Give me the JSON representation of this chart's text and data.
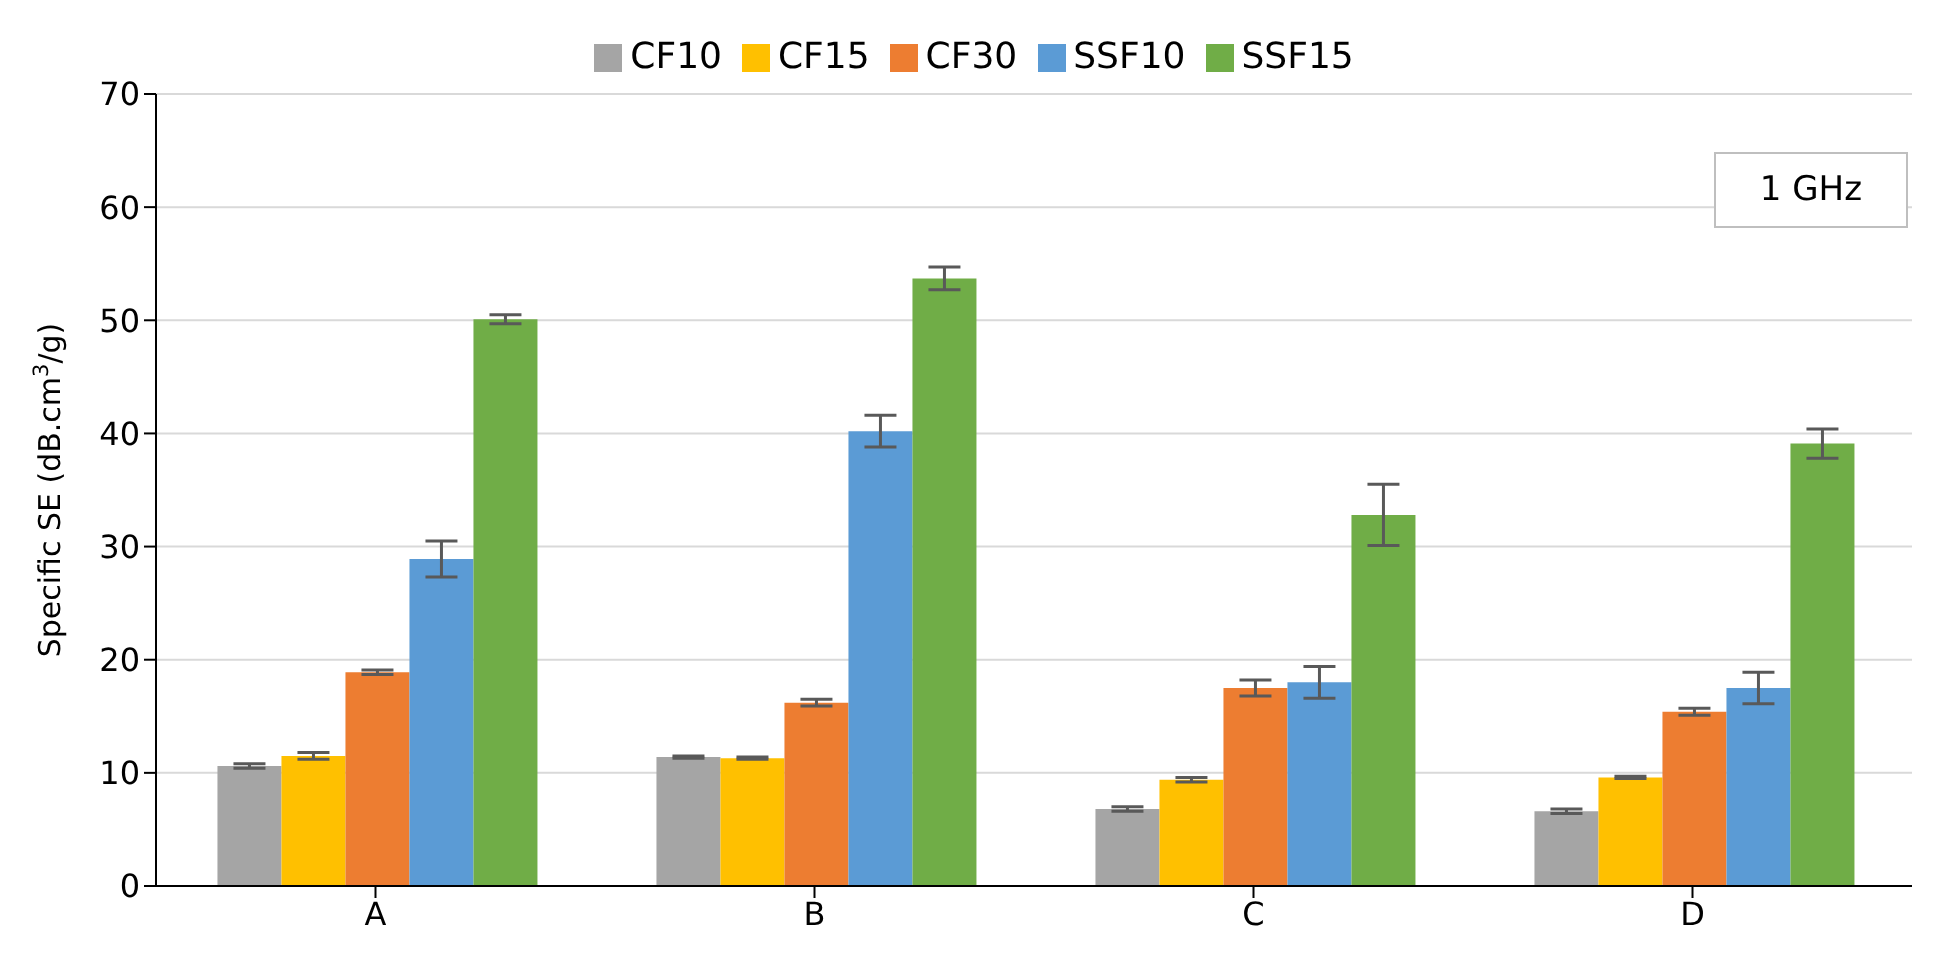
{
  "chart_data": {
    "type": "bar",
    "ylabel": "Specific SE (dB.cm$^{3}$/g)",
    "categories": [
      "A",
      "B",
      "C",
      "D"
    ],
    "series": [
      {
        "name": "CF10",
        "color": "#a5a5a5",
        "values": [
          10.6,
          11.4,
          6.8,
          6.6
        ],
        "errors": [
          0.2,
          0.1,
          0.2,
          0.2
        ]
      },
      {
        "name": "CF15",
        "color": "#ffc000",
        "values": [
          11.5,
          11.3,
          9.4,
          9.6
        ],
        "errors": [
          0.3,
          0.1,
          0.2,
          0.1
        ]
      },
      {
        "name": "CF30",
        "color": "#ed7d31",
        "values": [
          18.9,
          16.2,
          17.5,
          15.4
        ],
        "errors": [
          0.2,
          0.3,
          0.7,
          0.3
        ]
      },
      {
        "name": "SSF10",
        "color": "#5b9bd5",
        "values": [
          28.9,
          40.2,
          18.0,
          17.5
        ],
        "errors": [
          1.6,
          1.4,
          1.4,
          1.4
        ]
      },
      {
        "name": "SSF15",
        "color": "#70ad47",
        "values": [
          50.1,
          53.7,
          32.8,
          39.1
        ],
        "errors": [
          0.4,
          1.0,
          2.7,
          1.3
        ]
      }
    ],
    "ylim": [
      0,
      70
    ],
    "yticks": [
      0,
      10,
      20,
      30,
      40,
      50,
      60,
      70
    ],
    "grid": "y",
    "legend": "top",
    "annotations": [
      "1 GHz"
    ]
  }
}
